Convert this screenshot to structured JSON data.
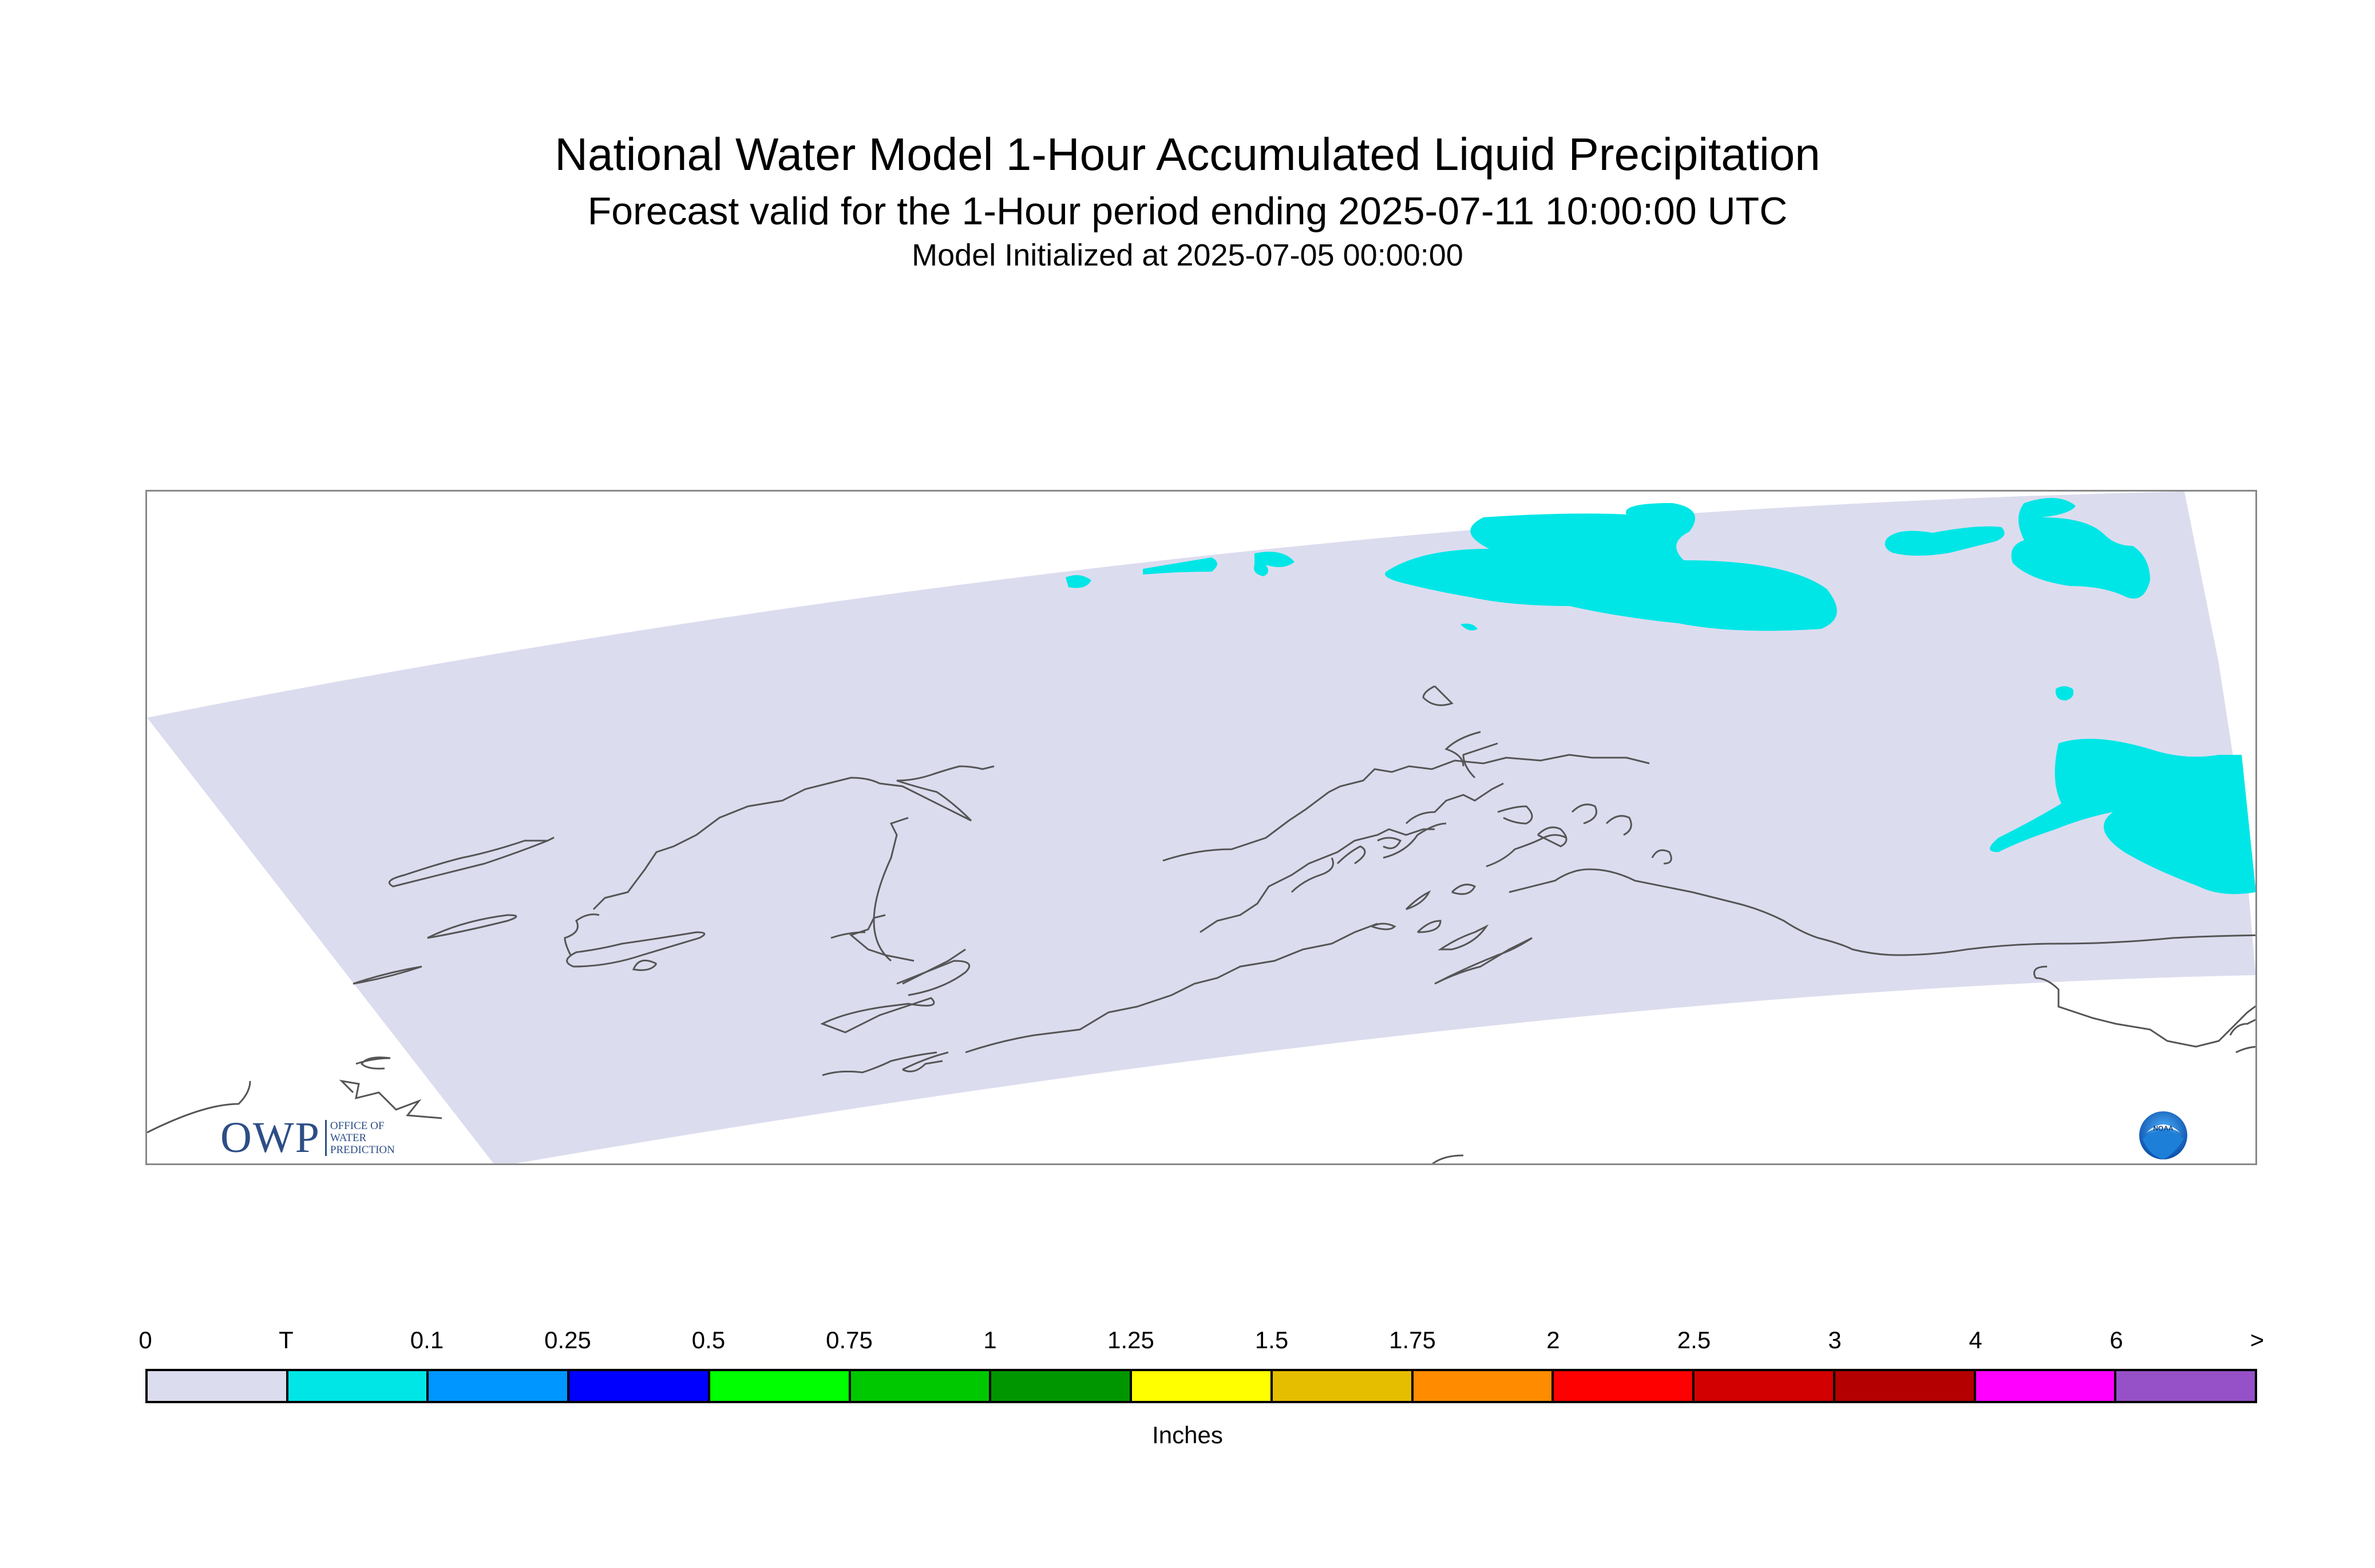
{
  "header": {
    "title": "National Water Model 1-Hour Accumulated Liquid Precipitation",
    "subtitle": "Forecast valid for the 1-Hour period ending 2025-07-11 10:00:00 UTC",
    "init_line": "Model Initialized at 2025-07-05 00:00:00"
  },
  "map": {
    "region": "Alaska",
    "background_fill": "#dcdcef",
    "precip_fill": "#00e6e6",
    "coastline_color": "#555555"
  },
  "legend": {
    "units": "Inches",
    "tick_labels": [
      "0",
      "T",
      "0.1",
      "0.25",
      "0.5",
      "0.75",
      "1",
      "1.25",
      "1.5",
      "1.75",
      "2",
      "2.5",
      "3",
      "4",
      "6",
      ">"
    ],
    "colors": [
      "#dcdcef",
      "#00e6e6",
      "#0096ff",
      "#0000ff",
      "#00ff00",
      "#00c800",
      "#009600",
      "#ffff00",
      "#e6be00",
      "#ff8c00",
      "#ff0000",
      "#d20000",
      "#b40000",
      "#ff00ff",
      "#9650c8"
    ]
  },
  "logos": {
    "owp": {
      "letters": "OWP",
      "line1": "OFFICE OF",
      "line2": "WATER",
      "line3": "PREDICTION"
    },
    "noaa": {
      "text": "NOAA"
    }
  }
}
